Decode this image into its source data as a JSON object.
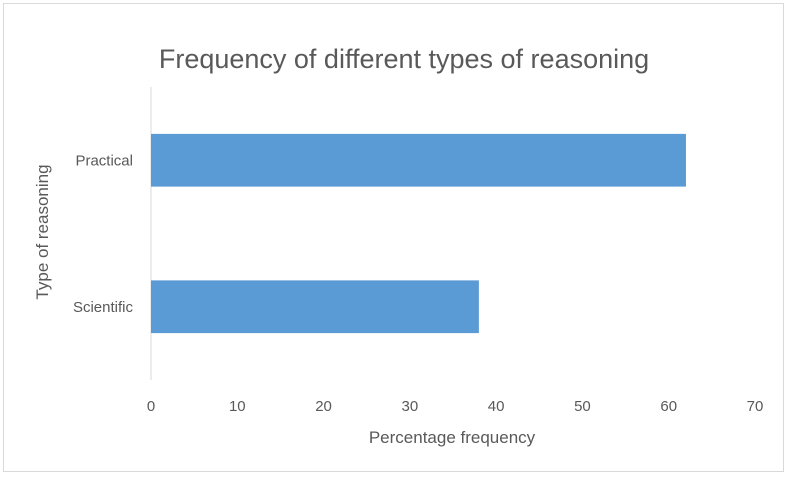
{
  "chart_data": {
    "type": "bar",
    "orientation": "horizontal",
    "title": "Frequency of different types of reasoning",
    "xlabel": "Percentage frequency",
    "ylabel": "Type of reasoning",
    "categories": [
      "Practical",
      "Scientific"
    ],
    "values": [
      62,
      38
    ],
    "xlim": [
      0,
      70
    ],
    "xticks": [
      0,
      10,
      20,
      30,
      40,
      50,
      60,
      70
    ],
    "grid": false,
    "legend": "none",
    "colors": {
      "bar": "#5b9bd5",
      "axis": "#d9d9d9",
      "text": "#595959"
    }
  }
}
